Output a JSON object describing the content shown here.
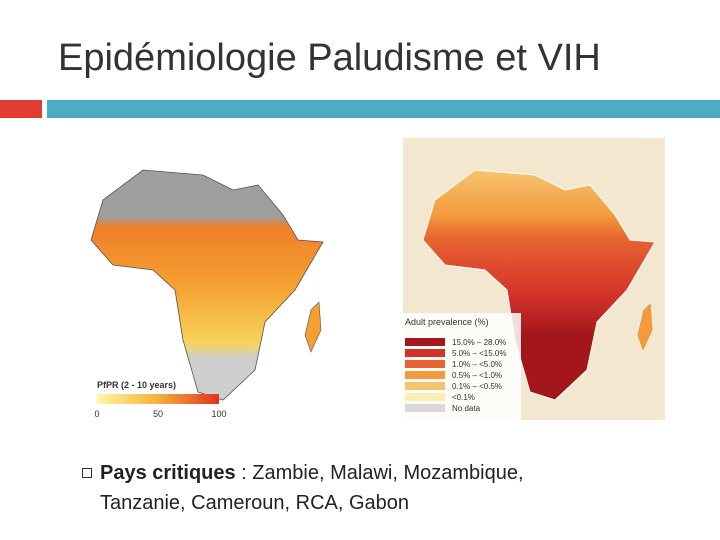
{
  "title": "Epidémiologie Paludisme et VIH",
  "malaria_map": {
    "legend_title": "PfPR (2 - 10 years)",
    "scale_labels": [
      "0",
      "50",
      "100"
    ]
  },
  "hiv_map": {
    "legend_title": "Adult prevalence (%)",
    "items": [
      {
        "label": "15.0% – 28.0%",
        "color": "#a3161c"
      },
      {
        "label": "5.0% – <15.0%",
        "color": "#d2322a"
      },
      {
        "label": "1.0% – <5.0%",
        "color": "#e8632f"
      },
      {
        "label": "0.5% – <1.0%",
        "color": "#f29a3d"
      },
      {
        "label": "0.1% – <0.5%",
        "color": "#f6c46f"
      },
      {
        "label": "<0.1%",
        "color": "#faecb5"
      },
      {
        "label": "No data",
        "color": "#d9d9d9"
      }
    ]
  },
  "bullet": {
    "bold": "Pays critiques",
    "text": " : Zambie, Malawi, Mozambique, Tanzanie, Cameroun, RCA, Gabon"
  }
}
